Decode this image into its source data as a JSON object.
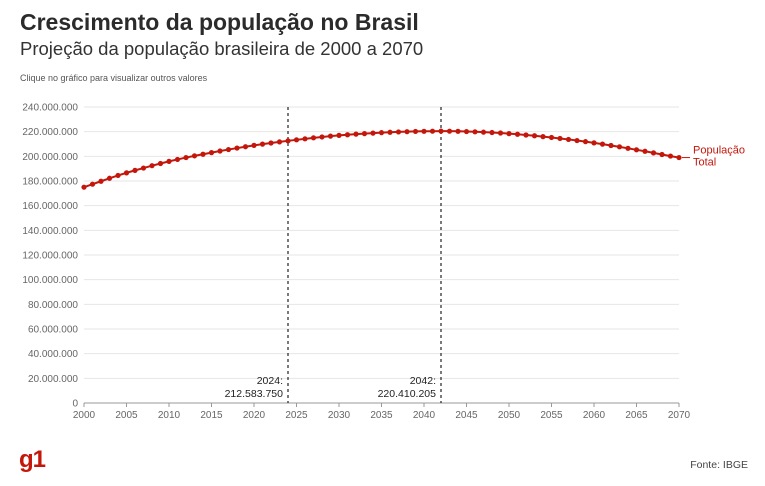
{
  "header": {
    "title": "Crescimento da população no Brasil",
    "subtitle": "Projeção da população brasileira de 2000 a 2070",
    "hint": "Clique no gráfico para visualizar outros valores"
  },
  "footer": {
    "logo": "g1",
    "source": "Fonte: IBGE"
  },
  "colors": {
    "series": "#c4170c",
    "grid": "#e6e6e6",
    "axis": "#999999",
    "annotation_line": "#222222"
  },
  "chart_data": {
    "type": "line",
    "title": "Crescimento da população no Brasil",
    "subtitle": "Projeção da população brasileira de 2000 a 2070",
    "xlabel": "",
    "ylabel": "",
    "xlim": [
      2000,
      2070
    ],
    "ylim": [
      0,
      240000000
    ],
    "grid": true,
    "x_ticks": [
      2000,
      2005,
      2010,
      2015,
      2020,
      2025,
      2030,
      2035,
      2040,
      2045,
      2050,
      2055,
      2060,
      2065,
      2070
    ],
    "y_ticks": [
      0,
      20000000,
      40000000,
      60000000,
      80000000,
      100000000,
      120000000,
      140000000,
      160000000,
      180000000,
      200000000,
      220000000,
      240000000
    ],
    "y_tick_labels": [
      "0",
      "20.000.000",
      "40.000.000",
      "60.000.000",
      "80.000.000",
      "100.000.000",
      "120.000.000",
      "140.000.000",
      "160.000.000",
      "180.000.000",
      "200.000.000",
      "220.000.000",
      "240.000.000"
    ],
    "series": [
      {
        "name": "População Total",
        "label_lines": [
          "População",
          "Total"
        ],
        "x": [
          2000,
          2001,
          2002,
          2003,
          2004,
          2005,
          2006,
          2007,
          2008,
          2009,
          2010,
          2011,
          2012,
          2013,
          2014,
          2015,
          2016,
          2017,
          2018,
          2019,
          2020,
          2021,
          2022,
          2023,
          2024,
          2025,
          2026,
          2027,
          2028,
          2029,
          2030,
          2031,
          2032,
          2033,
          2034,
          2035,
          2036,
          2037,
          2038,
          2039,
          2040,
          2041,
          2042,
          2043,
          2044,
          2045,
          2046,
          2047,
          2048,
          2049,
          2050,
          2051,
          2052,
          2053,
          2054,
          2055,
          2056,
          2057,
          2058,
          2059,
          2060,
          2061,
          2062,
          2063,
          2064,
          2065,
          2066,
          2067,
          2068,
          2069,
          2070
        ],
        "values": [
          175000000,
          177400000,
          179800000,
          182200000,
          184500000,
          186600000,
          188600000,
          190500000,
          192400000,
          194200000,
          195900000,
          197500000,
          199000000,
          200400000,
          201700000,
          203000000,
          204300000,
          205500000,
          206700000,
          207800000,
          208900000,
          209900000,
          210800000,
          211700000,
          212583750,
          213400000,
          214200000,
          215000000,
          215700000,
          216400000,
          217000000,
          217500000,
          218000000,
          218400000,
          218800000,
          219200000,
          219500000,
          219800000,
          220000000,
          220200000,
          220300000,
          220380000,
          220410205,
          220400000,
          220300000,
          220100000,
          219900000,
          219600000,
          219300000,
          218900000,
          218400000,
          217900000,
          217300000,
          216700000,
          216000000,
          215300000,
          214500000,
          213700000,
          212800000,
          211900000,
          210900000,
          209900000,
          208800000,
          207700000,
          206500000,
          205300000,
          204100000,
          202800000,
          201500000,
          200200000,
          199000000
        ]
      }
    ],
    "annotations": [
      {
        "year": 2024,
        "label_year": "2024:",
        "label_value": "212.583.750"
      },
      {
        "year": 2042,
        "label_year": "2042:",
        "label_value": "220.410.205"
      }
    ]
  }
}
